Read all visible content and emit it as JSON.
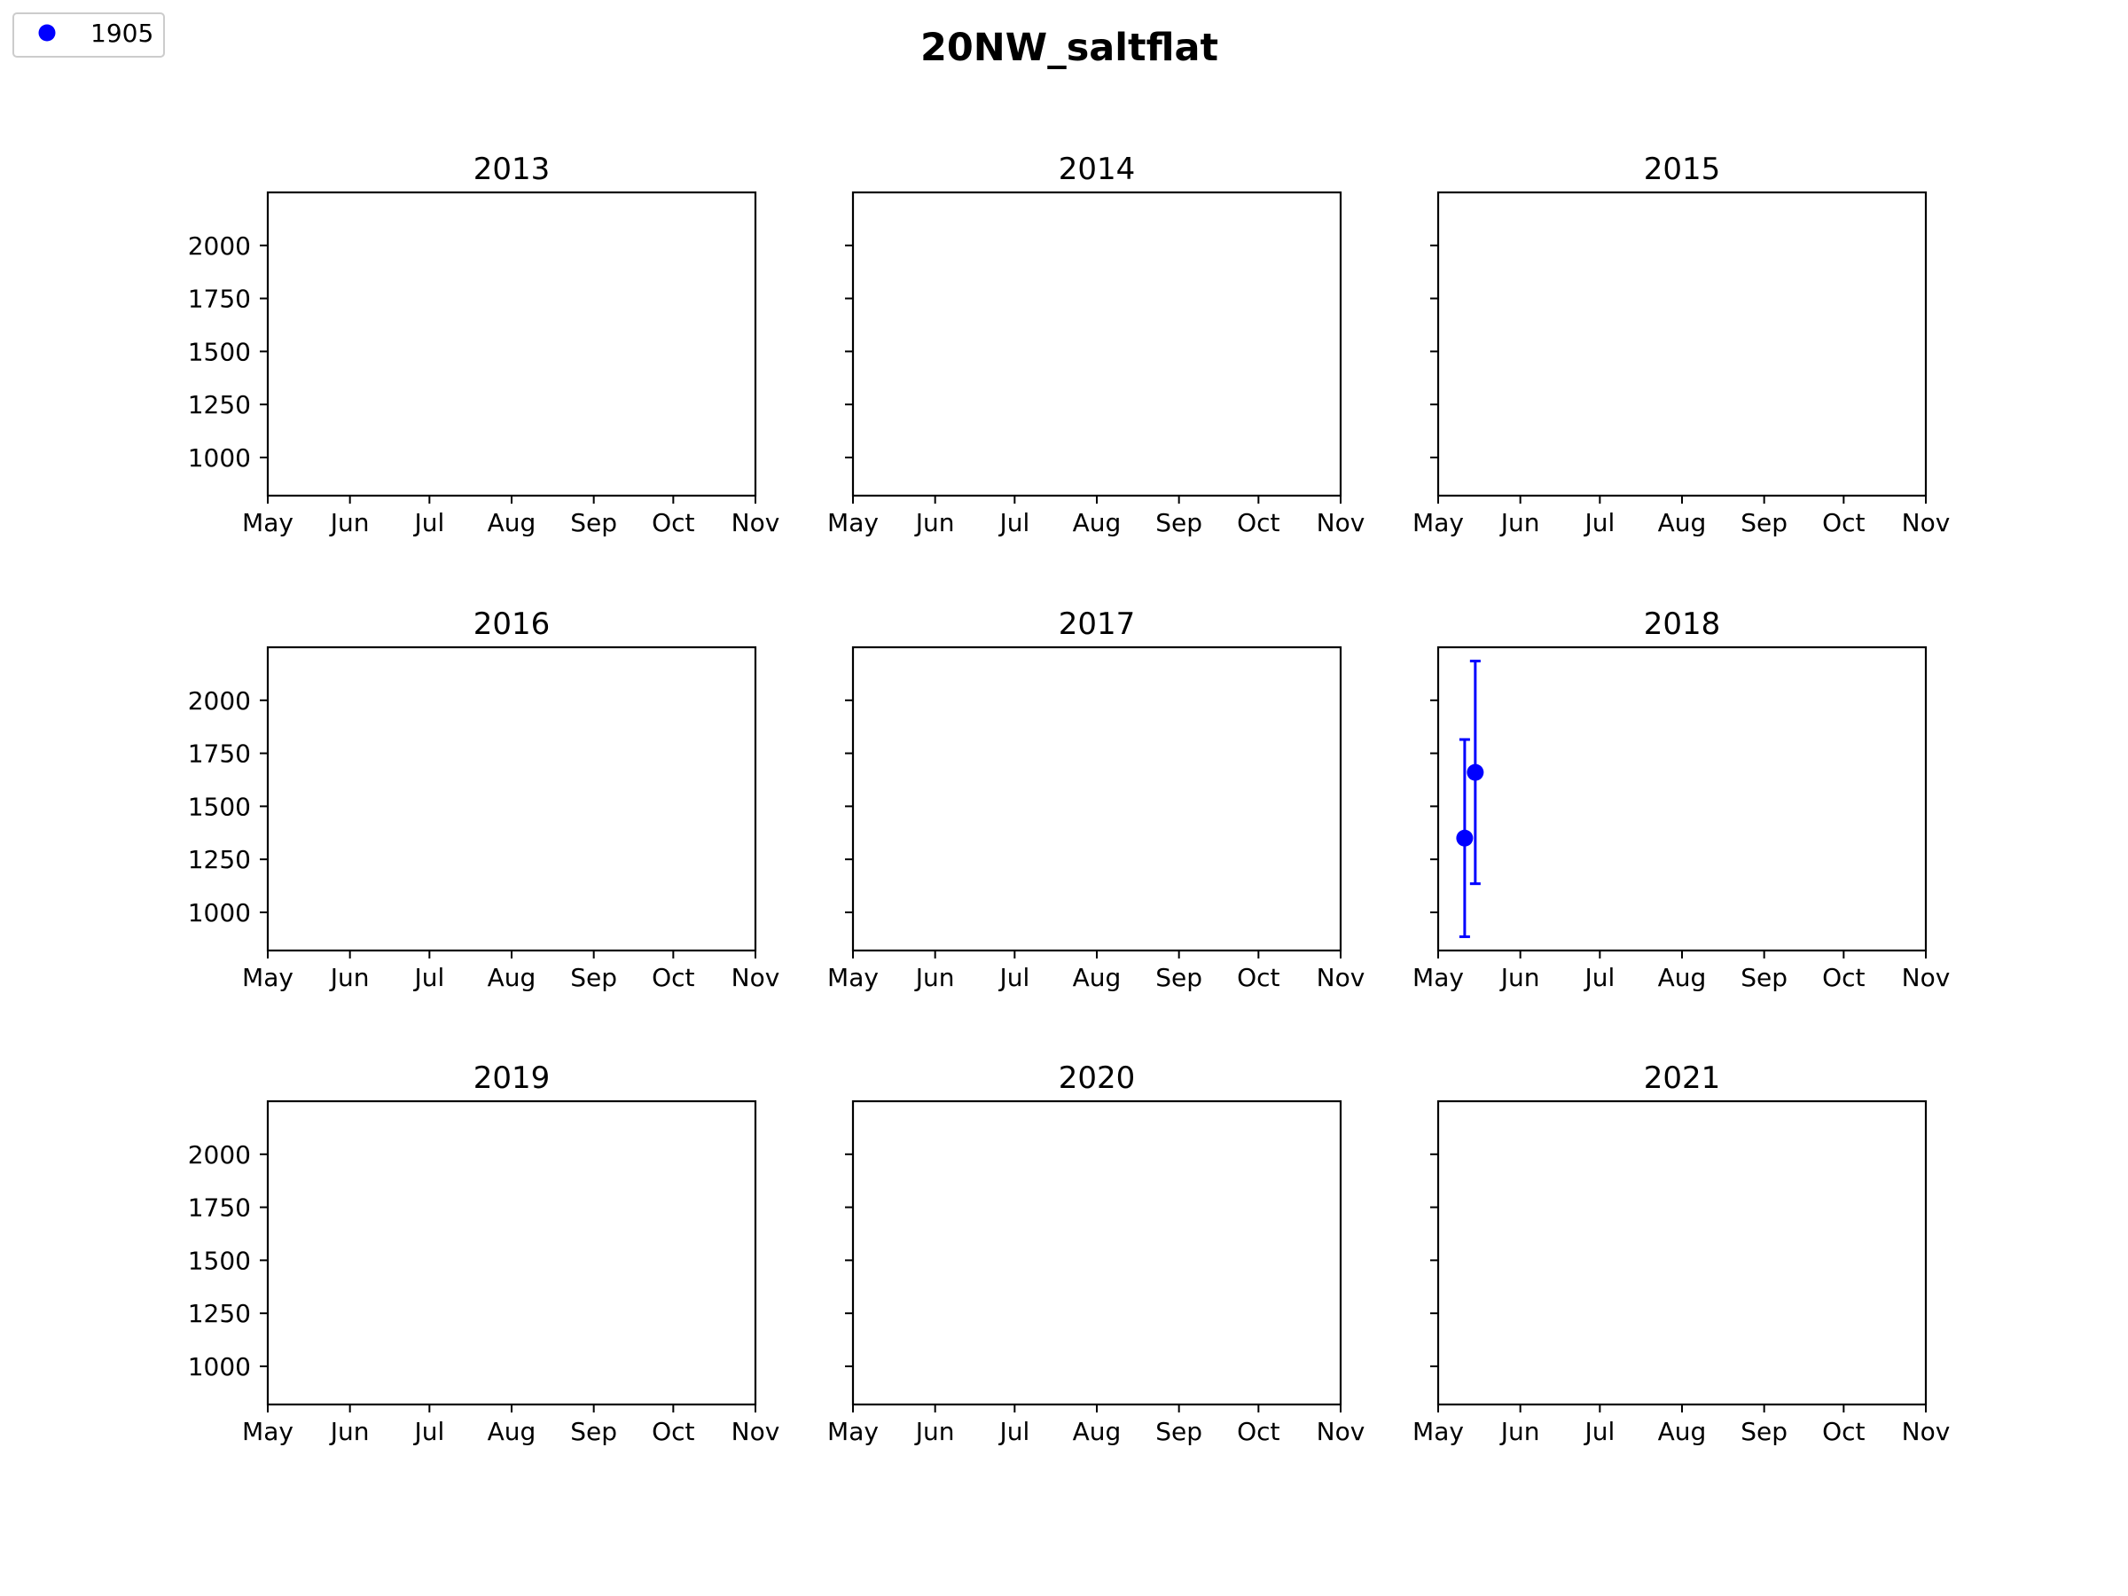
{
  "figure": {
    "title": "20NW_saltflat"
  },
  "legend": {
    "location": "upper-left",
    "entries": [
      {
        "label": "1905",
        "color": "#0000ff",
        "marker": "circle"
      }
    ]
  },
  "chart_data": {
    "type": "scatter",
    "layout": {
      "rows": 3,
      "cols": 3,
      "sharey": true
    },
    "xticks": [
      "May",
      "Jun",
      "Jul",
      "Aug",
      "Sep",
      "Oct",
      "Nov"
    ],
    "xlim": [
      "05-01",
      "11-01"
    ],
    "yticks": [
      1000,
      1250,
      1500,
      1750,
      2000
    ],
    "ylim": [
      820,
      2250
    ],
    "errorbars": true,
    "grid": false,
    "panels": [
      {
        "title": "2013",
        "series": []
      },
      {
        "title": "2014",
        "series": []
      },
      {
        "title": "2015",
        "series": []
      },
      {
        "title": "2016",
        "series": []
      },
      {
        "title": "2017",
        "series": []
      },
      {
        "title": "2018",
        "series": [
          {
            "name": "1905",
            "color": "#0000ff",
            "points": [
              {
                "x": "2018-05-11",
                "y": 1350,
                "yerr": 465
              },
              {
                "x": "2018-05-15",
                "y": 1660,
                "yerr": 525
              }
            ]
          }
        ]
      },
      {
        "title": "2019",
        "series": []
      },
      {
        "title": "2020",
        "series": []
      },
      {
        "title": "2021",
        "series": []
      }
    ]
  }
}
